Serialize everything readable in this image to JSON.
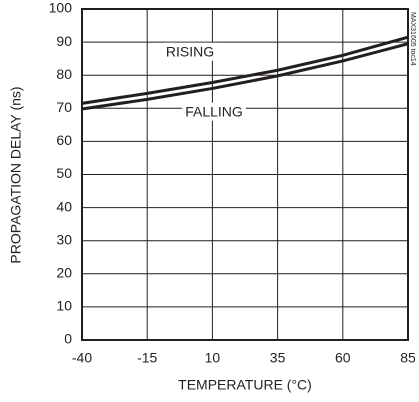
{
  "chart_data": {
    "type": "line",
    "x_label": "TEMPERATURE (°C)",
    "y_label": "PROPAGATION DELAY (ns)",
    "x": [
      -40,
      -15,
      10,
      35,
      60,
      85
    ],
    "series": [
      {
        "name": "RISING",
        "color": "#231f20",
        "values": [
          71.5,
          74.5,
          77.8,
          81.5,
          86,
          91.5
        ]
      },
      {
        "name": "FALLING",
        "color": "#231f20",
        "values": [
          69.8,
          72.7,
          76,
          79.8,
          84.3,
          89.5
        ]
      }
    ],
    "xlim": [
      -40,
      85
    ],
    "xticks": [
      -40,
      -15,
      10,
      35,
      60,
      85
    ],
    "ylim": [
      0,
      100
    ],
    "yticks": [
      0,
      10,
      20,
      30,
      40,
      50,
      60,
      70,
      80,
      90,
      100
    ],
    "grid": true,
    "figure_id": "MAX31605 toc14"
  }
}
